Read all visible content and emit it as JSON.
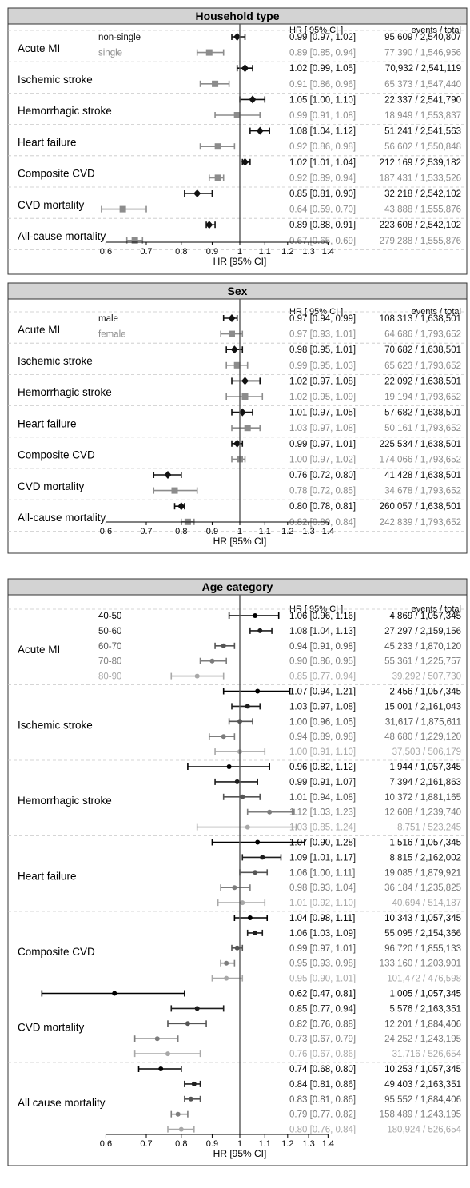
{
  "chart_data": [
    {
      "type": "forest",
      "title": "Household type",
      "xlabel": "HR [95% CI]",
      "x_ticks": [
        "0.6",
        "0.7",
        "0.8",
        "0.9",
        "1",
        "1.1",
        "1.2",
        "1.3",
        "1.4"
      ],
      "x_scale": "log",
      "reference_line": 1,
      "col_headers": {
        "hr": "HR [ 95% CI ]",
        "events": "events / total"
      },
      "groups": [
        {
          "name": "non-single",
          "color": "#111111"
        },
        {
          "name": "single",
          "color": "#8c8c8c"
        }
      ],
      "group_labels_outcome": "Acute MI",
      "outcomes": [
        {
          "name": "Acute MI",
          "rows": [
            {
              "hr": 0.99,
              "lo": 0.97,
              "hi": 1.02,
              "ci_text": "0.99 [0.97, 1.02]",
              "events_text": "95,609 / 2,540,807"
            },
            {
              "hr": 0.89,
              "lo": 0.85,
              "hi": 0.94,
              "ci_text": "0.89 [0.85, 0.94]",
              "events_text": "77,390 / 1,546,956"
            }
          ]
        },
        {
          "name": "Ischemic stroke",
          "rows": [
            {
              "hr": 1.02,
              "lo": 0.99,
              "hi": 1.05,
              "ci_text": "1.02 [0.99, 1.05]",
              "events_text": "70,932 / 2,541,119"
            },
            {
              "hr": 0.91,
              "lo": 0.86,
              "hi": 0.96,
              "ci_text": "0.91 [0.86, 0.96]",
              "events_text": "65,373 / 1,547,440"
            }
          ]
        },
        {
          "name": "Hemorrhagic stroke",
          "rows": [
            {
              "hr": 1.05,
              "lo": 1.0,
              "hi": 1.1,
              "ci_text": "1.05 [1.00, 1.10]",
              "events_text": "22,337 / 2,541,790"
            },
            {
              "hr": 0.99,
              "lo": 0.91,
              "hi": 1.08,
              "ci_text": "0.99 [0.91, 1.08]",
              "events_text": "18,949 / 1,553,837"
            }
          ]
        },
        {
          "name": "Heart failure",
          "rows": [
            {
              "hr": 1.08,
              "lo": 1.04,
              "hi": 1.12,
              "ci_text": "1.08 [1.04, 1.12]",
              "events_text": "51,241 / 2,541,563"
            },
            {
              "hr": 0.92,
              "lo": 0.86,
              "hi": 0.98,
              "ci_text": "0.92 [0.86, 0.98]",
              "events_text": "56,602 / 1,550,848"
            }
          ]
        },
        {
          "name": "Composite CVD",
          "rows": [
            {
              "hr": 1.02,
              "lo": 1.01,
              "hi": 1.04,
              "ci_text": "1.02 [1.01, 1.04]",
              "events_text": "212,169 / 2,539,182"
            },
            {
              "hr": 0.92,
              "lo": 0.89,
              "hi": 0.94,
              "ci_text": "0.92 [0.89, 0.94]",
              "events_text": "187,431 / 1,533,526"
            }
          ]
        },
        {
          "name": "CVD mortality",
          "rows": [
            {
              "hr": 0.85,
              "lo": 0.81,
              "hi": 0.9,
              "ci_text": "0.85 [0.81, 0.90]",
              "events_text": "32,218 / 2,542,102"
            },
            {
              "hr": 0.64,
              "lo": 0.59,
              "hi": 0.7,
              "ci_text": "0.64 [0.59, 0.70]",
              "events_text": "43,888 / 1,555,876"
            }
          ]
        },
        {
          "name": "All-cause mortality",
          "rows": [
            {
              "hr": 0.89,
              "lo": 0.88,
              "hi": 0.91,
              "ci_text": "0.89 [0.88, 0.91]",
              "events_text": "223,608 / 2,542,102"
            },
            {
              "hr": 0.67,
              "lo": 0.65,
              "hi": 0.69,
              "ci_text": "0.67 [0.65, 0.69]",
              "events_text": "279,288 / 1,555,876"
            }
          ]
        }
      ]
    },
    {
      "type": "forest",
      "title": "Sex",
      "xlabel": "HR [95% CI]",
      "x_ticks": [
        "0.6",
        "0.7",
        "0.8",
        "0.9",
        "1",
        "1.1",
        "1.2",
        "1.3",
        "1.4"
      ],
      "x_scale": "log",
      "reference_line": 1,
      "col_headers": {
        "hr": "HR [ 95% CI ]",
        "events": "events / total"
      },
      "groups": [
        {
          "name": "male",
          "color": "#111111"
        },
        {
          "name": "female",
          "color": "#8c8c8c"
        }
      ],
      "group_labels_outcome": "Acute MI",
      "outcomes": [
        {
          "name": "Acute MI",
          "rows": [
            {
              "hr": 0.97,
              "lo": 0.94,
              "hi": 0.99,
              "ci_text": "0.97 [0.94, 0.99]",
              "events_text": "108,313 / 1,638,501"
            },
            {
              "hr": 0.97,
              "lo": 0.93,
              "hi": 1.01,
              "ci_text": "0.97 [0.93, 1.01]",
              "events_text": "64,686 / 1,793,652"
            }
          ]
        },
        {
          "name": "Ischemic stroke",
          "rows": [
            {
              "hr": 0.98,
              "lo": 0.95,
              "hi": 1.01,
              "ci_text": "0.98 [0.95, 1.01]",
              "events_text": "70,682 / 1,638,501"
            },
            {
              "hr": 0.99,
              "lo": 0.95,
              "hi": 1.03,
              "ci_text": "0.99 [0.95, 1.03]",
              "events_text": "65,623 / 1,793,652"
            }
          ]
        },
        {
          "name": "Hemorrhagic stroke",
          "rows": [
            {
              "hr": 1.02,
              "lo": 0.97,
              "hi": 1.08,
              "ci_text": "1.02 [0.97, 1.08]",
              "events_text": "22,092 / 1,638,501"
            },
            {
              "hr": 1.02,
              "lo": 0.95,
              "hi": 1.09,
              "ci_text": "1.02 [0.95, 1.09]",
              "events_text": "19,194 / 1,793,652"
            }
          ]
        },
        {
          "name": "Heart failure",
          "rows": [
            {
              "hr": 1.01,
              "lo": 0.97,
              "hi": 1.05,
              "ci_text": "1.01 [0.97, 1.05]",
              "events_text": "57,682 / 1,638,501"
            },
            {
              "hr": 1.03,
              "lo": 0.97,
              "hi": 1.08,
              "ci_text": "1.03 [0.97, 1.08]",
              "events_text": "50,161 / 1,793,652"
            }
          ]
        },
        {
          "name": "Composite CVD",
          "rows": [
            {
              "hr": 0.99,
              "lo": 0.97,
              "hi": 1.01,
              "ci_text": "0.99 [0.97, 1.01]",
              "events_text": "225,534 / 1,638,501"
            },
            {
              "hr": 1.0,
              "lo": 0.97,
              "hi": 1.02,
              "ci_text": "1.00 [0.97, 1.02]",
              "events_text": "174,066 / 1,793,652"
            }
          ]
        },
        {
          "name": "CVD mortality",
          "rows": [
            {
              "hr": 0.76,
              "lo": 0.72,
              "hi": 0.8,
              "ci_text": "0.76 [0.72, 0.80]",
              "events_text": "41,428 / 1,638,501"
            },
            {
              "hr": 0.78,
              "lo": 0.72,
              "hi": 0.85,
              "ci_text": "0.78 [0.72, 0.85]",
              "events_text": "34,678 / 1,793,652"
            }
          ]
        },
        {
          "name": "All-cause mortality",
          "rows": [
            {
              "hr": 0.8,
              "lo": 0.78,
              "hi": 0.81,
              "ci_text": "0.80 [0.78, 0.81]",
              "events_text": "260,057 / 1,638,501"
            },
            {
              "hr": 0.82,
              "lo": 0.8,
              "hi": 0.84,
              "ci_text": "0.82 [0.80, 0.84]",
              "events_text": "242,839 / 1,793,652"
            }
          ]
        }
      ]
    },
    {
      "type": "forest",
      "title": "Age category",
      "xlabel": "HR [95% CI]",
      "x_ticks": [
        "0.6",
        "0.7",
        "0.8",
        "0.9",
        "1",
        "1.1",
        "1.2",
        "1.3",
        "1.4"
      ],
      "x_scale": "log",
      "reference_line": 1,
      "col_headers": {
        "hr": "HR [ 95% CI ]",
        "events": "events / total"
      },
      "groups": [
        {
          "name": "40-50",
          "color": "#000000"
        },
        {
          "name": "50-60",
          "color": "#1e1e1e"
        },
        {
          "name": "60-70",
          "color": "#555555"
        },
        {
          "name": "70-80",
          "color": "#7d7d7d"
        },
        {
          "name": "80-90",
          "color": "#a8a8a8"
        }
      ],
      "group_labels_outcome": "Acute MI",
      "outcomes": [
        {
          "name": "Acute MI",
          "rows": [
            {
              "hr": 1.06,
              "lo": 0.96,
              "hi": 1.16,
              "ci_text": "1.06 [0.96, 1.16]",
              "events_text": "4,869 / 1,057,345"
            },
            {
              "hr": 1.08,
              "lo": 1.04,
              "hi": 1.13,
              "ci_text": "1.08 [1.04, 1.13]",
              "events_text": "27,297 / 2,159,156"
            },
            {
              "hr": 0.94,
              "lo": 0.91,
              "hi": 0.98,
              "ci_text": "0.94 [0.91, 0.98]",
              "events_text": "45,233 / 1,870,120"
            },
            {
              "hr": 0.9,
              "lo": 0.86,
              "hi": 0.95,
              "ci_text": "0.90 [0.86, 0.95]",
              "events_text": "55,361 / 1,225,757"
            },
            {
              "hr": 0.85,
              "lo": 0.77,
              "hi": 0.94,
              "ci_text": "0.85 [0.77, 0.94]",
              "events_text": "39,292 /  507,730"
            }
          ]
        },
        {
          "name": "Ischemic stroke",
          "rows": [
            {
              "hr": 1.07,
              "lo": 0.94,
              "hi": 1.21,
              "ci_text": "1.07 [0.94, 1.21]",
              "events_text": "2,456 / 1,057,345"
            },
            {
              "hr": 1.03,
              "lo": 0.97,
              "hi": 1.08,
              "ci_text": "1.03 [0.97, 1.08]",
              "events_text": "15,001 / 2,161,043"
            },
            {
              "hr": 1.0,
              "lo": 0.96,
              "hi": 1.05,
              "ci_text": "1.00 [0.96, 1.05]",
              "events_text": "31,617 / 1,875,611"
            },
            {
              "hr": 0.94,
              "lo": 0.89,
              "hi": 0.98,
              "ci_text": "0.94 [0.89, 0.98]",
              "events_text": "48,680 / 1,229,120"
            },
            {
              "hr": 1.0,
              "lo": 0.91,
              "hi": 1.1,
              "ci_text": "1.00 [0.91, 1.10]",
              "events_text": "37,503 /  506,179"
            }
          ]
        },
        {
          "name": "Hemorrhagic stroke",
          "rows": [
            {
              "hr": 0.96,
              "lo": 0.82,
              "hi": 1.12,
              "ci_text": "0.96 [0.82, 1.12]",
              "events_text": "1,944 / 1,057,345"
            },
            {
              "hr": 0.99,
              "lo": 0.91,
              "hi": 1.07,
              "ci_text": "0.99 [0.91, 1.07]",
              "events_text": "7,394 / 2,161,863"
            },
            {
              "hr": 1.01,
              "lo": 0.94,
              "hi": 1.08,
              "ci_text": "1.01 [0.94, 1.08]",
              "events_text": "10,372 / 1,881,165"
            },
            {
              "hr": 1.12,
              "lo": 1.03,
              "hi": 1.23,
              "ci_text": "1.12 [1.03, 1.23]",
              "events_text": "12,608 / 1,239,740"
            },
            {
              "hr": 1.03,
              "lo": 0.85,
              "hi": 1.24,
              "ci_text": "1.03 [0.85, 1.24]",
              "events_text": "8,751 /  523,245"
            }
          ]
        },
        {
          "name": "Heart failure",
          "rows": [
            {
              "hr": 1.07,
              "lo": 0.9,
              "hi": 1.28,
              "ci_text": "1.07 [0.90, 1.28]",
              "events_text": "1,516 / 1,057,345"
            },
            {
              "hr": 1.09,
              "lo": 1.01,
              "hi": 1.17,
              "ci_text": "1.09 [1.01, 1.17]",
              "events_text": "8,815 / 2,162,002"
            },
            {
              "hr": 1.06,
              "lo": 1.0,
              "hi": 1.11,
              "ci_text": "1.06 [1.00, 1.11]",
              "events_text": "19,085 / 1,879,921"
            },
            {
              "hr": 0.98,
              "lo": 0.93,
              "hi": 1.04,
              "ci_text": "0.98 [0.93, 1.04]",
              "events_text": "36,184 / 1,235,825"
            },
            {
              "hr": 1.01,
              "lo": 0.92,
              "hi": 1.1,
              "ci_text": "1.01 [0.92, 1.10]",
              "events_text": "40,694 /  514,187"
            }
          ]
        },
        {
          "name": "Composite CVD",
          "rows": [
            {
              "hr": 1.04,
              "lo": 0.98,
              "hi": 1.11,
              "ci_text": "1.04 [0.98, 1.11]",
              "events_text": "10,343 / 1,057,345"
            },
            {
              "hr": 1.06,
              "lo": 1.03,
              "hi": 1.09,
              "ci_text": "1.06 [1.03, 1.09]",
              "events_text": "55,095 / 2,154,366"
            },
            {
              "hr": 0.99,
              "lo": 0.97,
              "hi": 1.01,
              "ci_text": "0.99 [0.97, 1.01]",
              "events_text": "96,720 / 1,855,133"
            },
            {
              "hr": 0.95,
              "lo": 0.93,
              "hi": 0.98,
              "ci_text": "0.95 [0.93, 0.98]",
              "events_text": "133,160 / 1,203,901"
            },
            {
              "hr": 0.95,
              "lo": 0.9,
              "hi": 1.01,
              "ci_text": "0.95 [0.90, 1.01]",
              "events_text": "101,472 /  476,598"
            }
          ]
        },
        {
          "name": "CVD mortality",
          "rows": [
            {
              "hr": 0.62,
              "lo": 0.47,
              "hi": 0.81,
              "ci_text": "0.62 [0.47, 0.81]",
              "events_text": "1,005 / 1,057,345"
            },
            {
              "hr": 0.85,
              "lo": 0.77,
              "hi": 0.94,
              "ci_text": "0.85 [0.77, 0.94]",
              "events_text": "5,576 / 2,163,351"
            },
            {
              "hr": 0.82,
              "lo": 0.76,
              "hi": 0.88,
              "ci_text": "0.82 [0.76, 0.88]",
              "events_text": "12,201 / 1,884,406"
            },
            {
              "hr": 0.73,
              "lo": 0.67,
              "hi": 0.79,
              "ci_text": "0.73 [0.67, 0.79]",
              "events_text": "24,252 / 1,243,195"
            },
            {
              "hr": 0.76,
              "lo": 0.67,
              "hi": 0.86,
              "ci_text": "0.76 [0.67, 0.86]",
              "events_text": "31,716 /  526,654"
            }
          ]
        },
        {
          "name": "All cause mortality",
          "rows": [
            {
              "hr": 0.74,
              "lo": 0.68,
              "hi": 0.8,
              "ci_text": "0.74 [0.68, 0.80]",
              "events_text": "10,253 / 1,057,345"
            },
            {
              "hr": 0.84,
              "lo": 0.81,
              "hi": 0.86,
              "ci_text": "0.84 [0.81, 0.86]",
              "events_text": "49,403 / 2,163,351"
            },
            {
              "hr": 0.83,
              "lo": 0.81,
              "hi": 0.86,
              "ci_text": "0.83 [0.81, 0.86]",
              "events_text": "95,552 / 1,884,406"
            },
            {
              "hr": 0.79,
              "lo": 0.77,
              "hi": 0.82,
              "ci_text": "0.79 [0.77, 0.82]",
              "events_text": "158,489 / 1,243,195"
            },
            {
              "hr": 0.8,
              "lo": 0.76,
              "hi": 0.84,
              "ci_text": "0.80 [0.76, 0.84]",
              "events_text": "180,924 /  526,654"
            }
          ]
        }
      ]
    }
  ]
}
